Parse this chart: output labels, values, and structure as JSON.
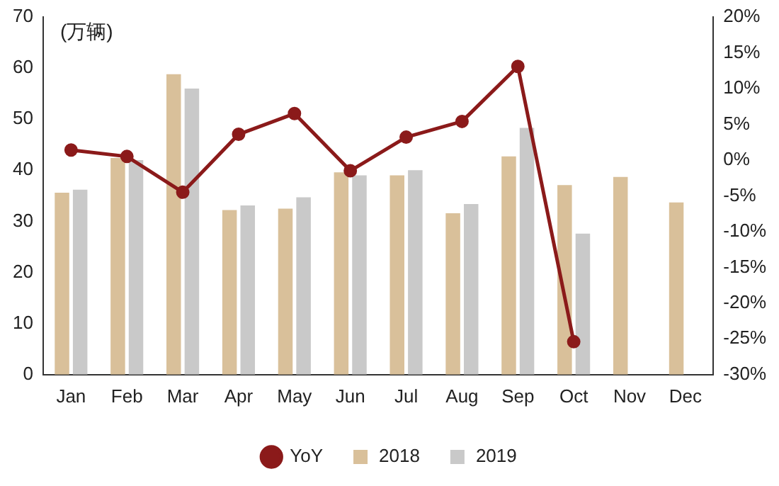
{
  "chart_data": {
    "type": "bar",
    "categories": [
      "Jan",
      "Feb",
      "Mar",
      "Apr",
      "May",
      "Jun",
      "Jul",
      "Aug",
      "Sep",
      "Oct",
      "Nov",
      "Dec"
    ],
    "series": [
      {
        "name": "2018",
        "color": "#d9c09a",
        "values": [
          35.6,
          42.4,
          58.8,
          32.2,
          32.5,
          39.6,
          39,
          31.6,
          42.7,
          37.1,
          38.7,
          33.7
        ]
      },
      {
        "name": "2019",
        "color": "#c9c9c9",
        "values": [
          36.2,
          42,
          56,
          33.1,
          34.7,
          39,
          40,
          33.4,
          48.3,
          27.6,
          null,
          null
        ]
      },
      {
        "name": "YoY",
        "type": "line",
        "axis": "y2",
        "color": "#8b1a1a",
        "marker": "circle",
        "values": [
          1.4,
          0.5,
          -4.5,
          3.6,
          6.5,
          -1.5,
          3.2,
          5.4,
          13.1,
          -25.4,
          null,
          null
        ]
      }
    ],
    "ylim": [
      0,
      70
    ],
    "yticks": [
      0,
      10,
      20,
      30,
      40,
      50,
      60,
      70
    ],
    "y2lim": [
      -30,
      20
    ],
    "y2ticks": [
      {
        "value": -30,
        "label": "-30%"
      },
      {
        "value": -25,
        "label": "-25%"
      },
      {
        "value": -20,
        "label": "-20%"
      },
      {
        "value": -15,
        "label": "-15%"
      },
      {
        "value": -10,
        "label": "-10%"
      },
      {
        "value": -5,
        "label": "-5%"
      },
      {
        "value": 0,
        "label": "0%"
      },
      {
        "value": 5,
        "label": "5%"
      },
      {
        "value": 10,
        "label": "10%"
      },
      {
        "value": 15,
        "label": "15%"
      },
      {
        "value": 20,
        "label": "20%"
      }
    ],
    "annotations": [
      "(万辆)"
    ],
    "grid": false,
    "legend": "bottom"
  }
}
